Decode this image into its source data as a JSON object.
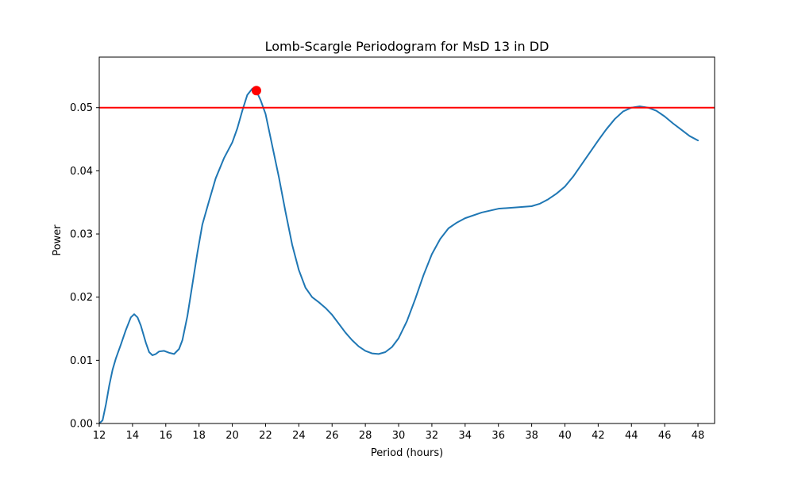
{
  "chart_data": {
    "type": "line",
    "title": "Lomb-Scargle Periodogram for MsD 13 in DD",
    "xlabel": "Period (hours)",
    "ylabel": "Power",
    "xlim": [
      12,
      49
    ],
    "ylim": [
      0,
      0.058
    ],
    "xticks": [
      12,
      14,
      16,
      18,
      20,
      22,
      24,
      26,
      28,
      30,
      32,
      34,
      36,
      38,
      40,
      42,
      44,
      46,
      48
    ],
    "xtick_labels": [
      "12",
      "14",
      "16",
      "18",
      "20",
      "22",
      "24",
      "26",
      "28",
      "30",
      "32",
      "34",
      "36",
      "38",
      "40",
      "42",
      "44",
      "46",
      "48"
    ],
    "yticks": [
      0,
      0.01,
      0.02,
      0.03,
      0.04,
      0.05
    ],
    "ytick_labels": [
      "0.00",
      "0.01",
      "0.02",
      "0.03",
      "0.04",
      "0.05"
    ],
    "grid": false,
    "series": [
      {
        "color": "#1f77b4",
        "x": [
          12.0,
          12.2,
          12.4,
          12.6,
          12.8,
          13.0,
          13.3,
          13.6,
          13.9,
          14.1,
          14.3,
          14.5,
          14.8,
          15.0,
          15.2,
          15.4,
          15.6,
          15.9,
          16.2,
          16.5,
          16.8,
          17.0,
          17.3,
          17.6,
          17.9,
          18.2,
          18.6,
          19.0,
          19.5,
          20.0,
          20.3,
          20.6,
          20.9,
          21.2,
          21.45,
          21.7,
          22.0,
          22.4,
          22.8,
          23.2,
          23.6,
          24.0,
          24.4,
          24.8,
          25.2,
          25.6,
          26.0,
          26.4,
          26.8,
          27.2,
          27.6,
          28.0,
          28.4,
          28.8,
          29.2,
          29.6,
          30.0,
          30.5,
          31.0,
          31.5,
          32.0,
          32.5,
          33.0,
          33.5,
          34.0,
          35.0,
          36.0,
          37.0,
          38.0,
          38.5,
          39.0,
          39.5,
          40.0,
          40.5,
          41.0,
          41.5,
          42.0,
          42.5,
          43.0,
          43.5,
          44.0,
          44.5,
          45.0,
          45.5,
          46.0,
          46.5,
          47.0,
          47.5,
          48.0
        ],
        "y": [
          0.0,
          0.0005,
          0.003,
          0.006,
          0.0085,
          0.0103,
          0.0125,
          0.0148,
          0.0168,
          0.0173,
          0.0168,
          0.0155,
          0.0128,
          0.0113,
          0.0108,
          0.011,
          0.0114,
          0.0115,
          0.0112,
          0.011,
          0.0118,
          0.0132,
          0.017,
          0.022,
          0.027,
          0.0315,
          0.0352,
          0.0388,
          0.042,
          0.0445,
          0.0467,
          0.0495,
          0.052,
          0.053,
          0.0526,
          0.0512,
          0.049,
          0.044,
          0.039,
          0.0335,
          0.0283,
          0.0243,
          0.0215,
          0.02,
          0.0192,
          0.0183,
          0.0172,
          0.0158,
          0.0144,
          0.0132,
          0.0122,
          0.0115,
          0.0111,
          0.011,
          0.0113,
          0.0121,
          0.0135,
          0.0162,
          0.0197,
          0.0235,
          0.0268,
          0.0292,
          0.0309,
          0.0318,
          0.0325,
          0.0334,
          0.034,
          0.0342,
          0.0344,
          0.0348,
          0.0355,
          0.0364,
          0.0375,
          0.0391,
          0.041,
          0.0429,
          0.0448,
          0.0466,
          0.0482,
          0.0494,
          0.05,
          0.0502,
          0.05,
          0.0495,
          0.0486,
          0.0475,
          0.0465,
          0.0455,
          0.0448
        ]
      }
    ],
    "threshold": {
      "y": 0.05,
      "color": "#ff0000"
    },
    "peak": {
      "x": 21.45,
      "y": 0.0527,
      "color": "#ff0000"
    }
  }
}
